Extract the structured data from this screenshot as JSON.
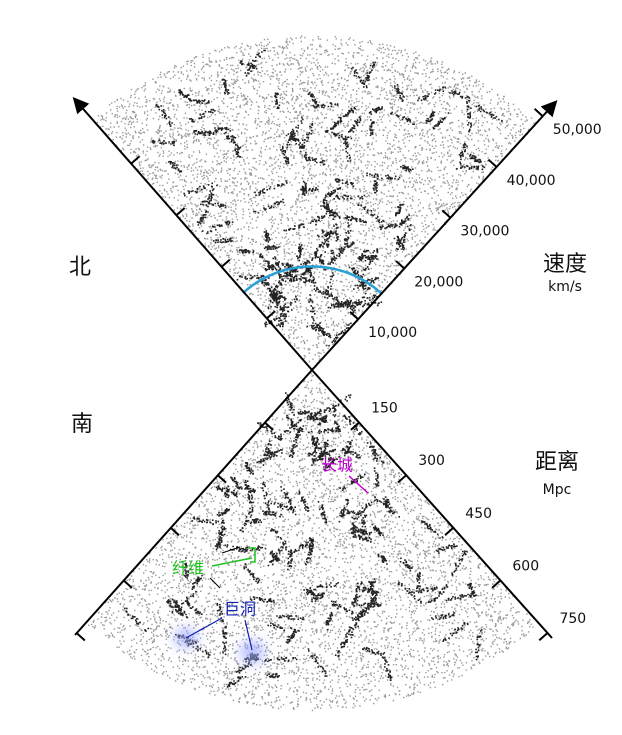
{
  "north": "北",
  "south": "南",
  "velocity": {
    "title": "速度",
    "unit": "km/s",
    "ticks": [
      "10,000",
      "20,000",
      "30,000",
      "40,000",
      "50,000"
    ]
  },
  "distance": {
    "title": "距离",
    "unit": "Mpc",
    "ticks": [
      "150",
      "300",
      "450",
      "600",
      "750"
    ]
  },
  "annotations": {
    "great_wall": "长城",
    "filament": "纤维",
    "void": "巨洞"
  }
}
